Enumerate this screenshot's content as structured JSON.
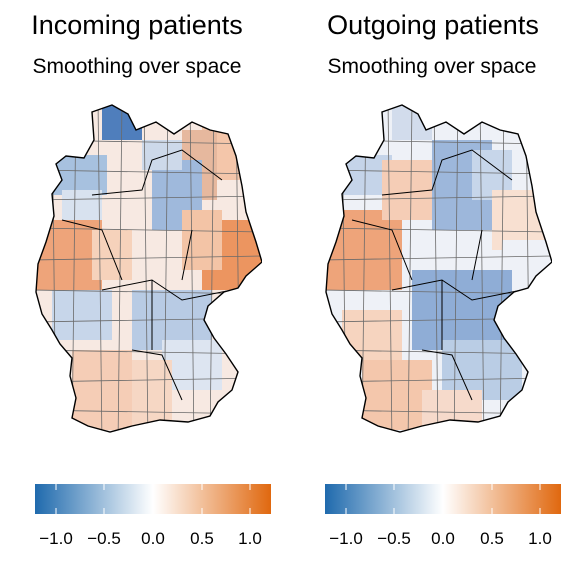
{
  "panels": [
    {
      "title": "Incoming patients",
      "subtitle": "Smoothing over space",
      "colorscale": {
        "ticks": [
          "−1.0",
          "−0.5",
          "0.0",
          "0.5",
          "1.0"
        ],
        "tick_values": [
          -1.0,
          -0.5,
          0.0,
          0.5,
          1.0
        ],
        "range": [
          -1.2,
          1.2
        ]
      }
    },
    {
      "title": "Outgoing patients",
      "subtitle": "Smoothing over space",
      "colorscale": {
        "ticks": [
          "−1.0",
          "−0.5",
          "0.0",
          "0.5",
          "1.0"
        ],
        "tick_values": [
          -1.0,
          -0.5,
          0.0,
          0.5,
          1.0
        ],
        "range": [
          -1.2,
          1.2
        ]
      }
    }
  ],
  "colors": {
    "low": "#2166ac",
    "mid": "#ffffff",
    "high": "#e0701a",
    "border": "#555555",
    "state_border": "#000000"
  }
}
